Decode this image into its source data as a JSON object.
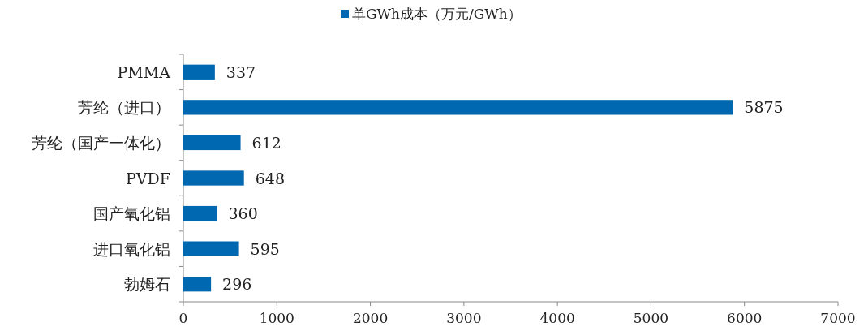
{
  "chart_data": {
    "type": "bar",
    "orientation": "horizontal",
    "categories": [
      "PMMA",
      "芳纶（进口）",
      "芳纶（国产一体化）",
      "PVDF",
      "国产氧化铝",
      "进口氧化铝",
      "勃姆石"
    ],
    "series": [
      {
        "name": "单GWh成本（万元/GWh）",
        "color": "#0068b0",
        "values": [
          337,
          5875,
          612,
          648,
          360,
          595,
          296
        ]
      }
    ],
    "xlim": [
      0,
      7000
    ],
    "xticks": [
      0,
      1000,
      2000,
      3000,
      4000,
      5000,
      6000,
      7000
    ],
    "data_labels": true,
    "legend": "top",
    "grid": false
  }
}
